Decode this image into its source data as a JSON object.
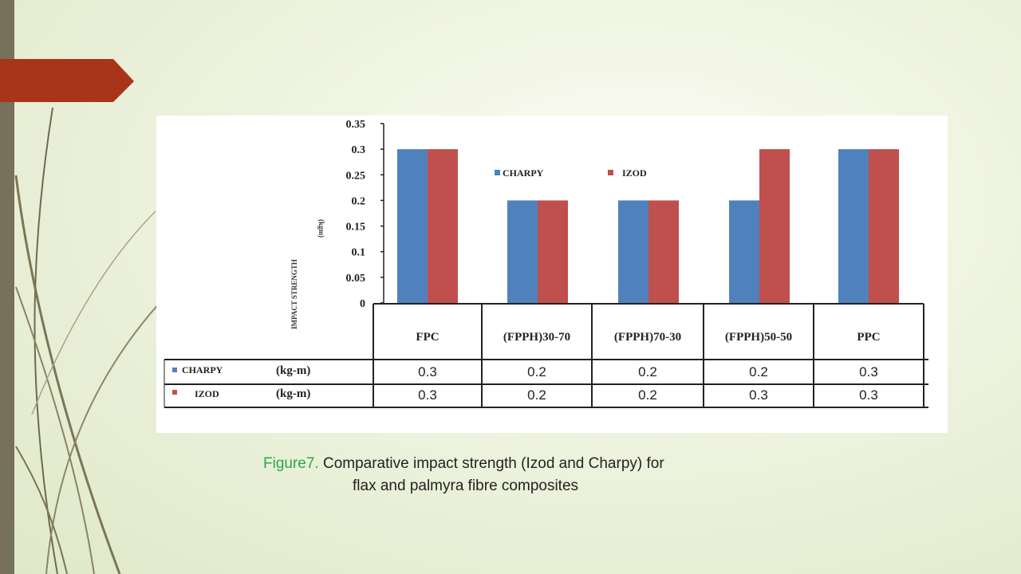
{
  "slide": {
    "accent_color": "#a8341a",
    "sidebar_color": "#77705a",
    "caption": {
      "figure_label": "Figure7.",
      "line1_rest": " Comparative impact strength (Izod and Charpy) for",
      "line2": "flax and palmyra fibre composites",
      "figure_label_color": "#2aa84a"
    }
  },
  "chart_data": {
    "type": "bar",
    "title": "",
    "ylabel": "IMPACT STRENGTH",
    "ylabel_unit": "(kgm)",
    "ylim": [
      0,
      0.35
    ],
    "y_ticks": [
      "0",
      "0.05",
      "0.1",
      "0.15",
      "0.2",
      "0.25",
      "0.3",
      "0.35"
    ],
    "categories": [
      "FPC",
      "(FPPH)30-70",
      "(FPPH)70-30",
      "(FPPH)50-50",
      "PPC"
    ],
    "category_labels": [
      "FPC",
      "(FPPH)30-70",
      "(FPPH)70-30",
      "(FPPH)50-50",
      "PPC"
    ],
    "series": [
      {
        "name": "CHARPY",
        "color": "#4f81bd",
        "values": [
          0.3,
          0.2,
          0.2,
          0.2,
          0.3
        ],
        "value_labels": [
          "0.3",
          "0.2",
          "0.2",
          "0.2",
          "0.3"
        ]
      },
      {
        "name": "IZOD",
        "color": "#c0504d",
        "values": [
          0.3,
          0.2,
          0.2,
          0.3,
          0.3
        ],
        "value_labels": [
          "0.3",
          "0.2",
          "0.2",
          "0.3",
          "0.3"
        ]
      }
    ],
    "table_unit": "(kg-m)",
    "legend_position": "top-center",
    "grid": false
  }
}
